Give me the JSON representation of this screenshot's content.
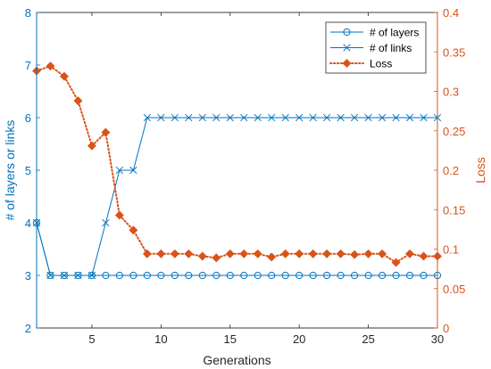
{
  "colors": {
    "left_axis": "#0072BD",
    "right_axis": "#D95319",
    "frame": "#262626",
    "grid": "#e6e6e6"
  },
  "chart_data": {
    "type": "line",
    "xlabel": "Generations",
    "ylabel_left": "# of layers or links",
    "ylabel_right": "Loss",
    "xlim": [
      1,
      30
    ],
    "ylim_left": [
      2,
      8
    ],
    "ylim_right": [
      0,
      0.4
    ],
    "x_ticks": [
      5,
      10,
      15,
      20,
      25,
      30
    ],
    "y_ticks_left": [
      2,
      3,
      4,
      5,
      6,
      7,
      8
    ],
    "y_ticks_right": [
      0,
      0.05,
      0.1,
      0.15,
      0.2,
      0.25,
      0.3,
      0.35,
      0.4
    ],
    "y_tick_labels_right": [
      "0",
      "0.05",
      "0.1",
      "0.15",
      "0.2",
      "0.25",
      "0.3",
      "0.35",
      "0.4"
    ],
    "legend_position": "top-right",
    "x": [
      1,
      2,
      3,
      4,
      5,
      6,
      7,
      8,
      9,
      10,
      11,
      12,
      13,
      14,
      15,
      16,
      17,
      18,
      19,
      20,
      21,
      22,
      23,
      24,
      25,
      26,
      27,
      28,
      29,
      30
    ],
    "series": [
      {
        "name": "# of layers",
        "axis": "left",
        "marker": "circle",
        "line": "solid",
        "color": "#0072BD",
        "values": [
          4,
          3,
          3,
          3,
          3,
          3,
          3,
          3,
          3,
          3,
          3,
          3,
          3,
          3,
          3,
          3,
          3,
          3,
          3,
          3,
          3,
          3,
          3,
          3,
          3,
          3,
          3,
          3,
          3,
          3
        ]
      },
      {
        "name": "# of links",
        "axis": "left",
        "marker": "x",
        "line": "solid",
        "color": "#0072BD",
        "values": [
          4,
          3,
          3,
          3,
          3,
          4,
          5,
          5,
          6,
          6,
          6,
          6,
          6,
          6,
          6,
          6,
          6,
          6,
          6,
          6,
          6,
          6,
          6,
          6,
          6,
          6,
          6,
          6,
          6,
          6
        ]
      },
      {
        "name": "Loss",
        "axis": "right",
        "marker": "diamond",
        "line": "dotted",
        "color": "#D95319",
        "values": [
          0.326,
          0.332,
          0.319,
          0.288,
          0.231,
          0.248,
          0.143,
          0.124,
          0.094,
          0.094,
          0.094,
          0.094,
          0.091,
          0.089,
          0.094,
          0.094,
          0.094,
          0.09,
          0.094,
          0.094,
          0.094,
          0.094,
          0.094,
          0.093,
          0.094,
          0.094,
          0.083,
          0.094,
          0.091,
          0.091
        ]
      }
    ]
  }
}
